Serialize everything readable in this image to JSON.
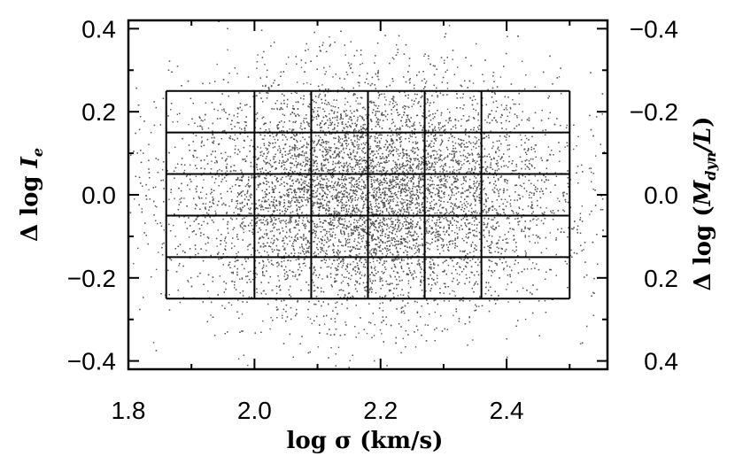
{
  "chart_data": {
    "type": "scatter",
    "title": "",
    "xlabel": "log σ (km/s)",
    "ylabel_left_parts": [
      "Δ log ",
      "I",
      "e"
    ],
    "ylabel_right_parts": [
      "Δ log (",
      "M",
      "dyn",
      "/",
      "L",
      ")"
    ],
    "xlim": [
      1.8,
      2.56
    ],
    "ylim": [
      -0.42,
      0.42
    ],
    "x_ticks": [
      1.8,
      2.0,
      2.2,
      2.4
    ],
    "x_tick_labels": [
      "1.8",
      "2.0",
      "2.2",
      "2.4"
    ],
    "y_ticks": [
      -0.4,
      -0.2,
      0.0,
      0.2,
      0.4
    ],
    "y_tick_labels_left": [
      "−0.4",
      "−0.2",
      "0.0",
      "0.2",
      "0.4"
    ],
    "y_tick_labels_right": [
      "0.4",
      "0.2",
      "0.0",
      "−0.2",
      "−0.4"
    ],
    "grid_x_edges": [
      1.86,
      2.0,
      2.09,
      2.18,
      2.27,
      2.36,
      2.5
    ],
    "grid_y_edges": [
      -0.25,
      -0.15,
      -0.05,
      0.05,
      0.15,
      0.25
    ],
    "point_color": "#555555",
    "point_distribution": {
      "count": 13000,
      "x_mean": 2.18,
      "x_std": 0.15,
      "y_mean": 0.0,
      "y_std": 0.14
    }
  }
}
